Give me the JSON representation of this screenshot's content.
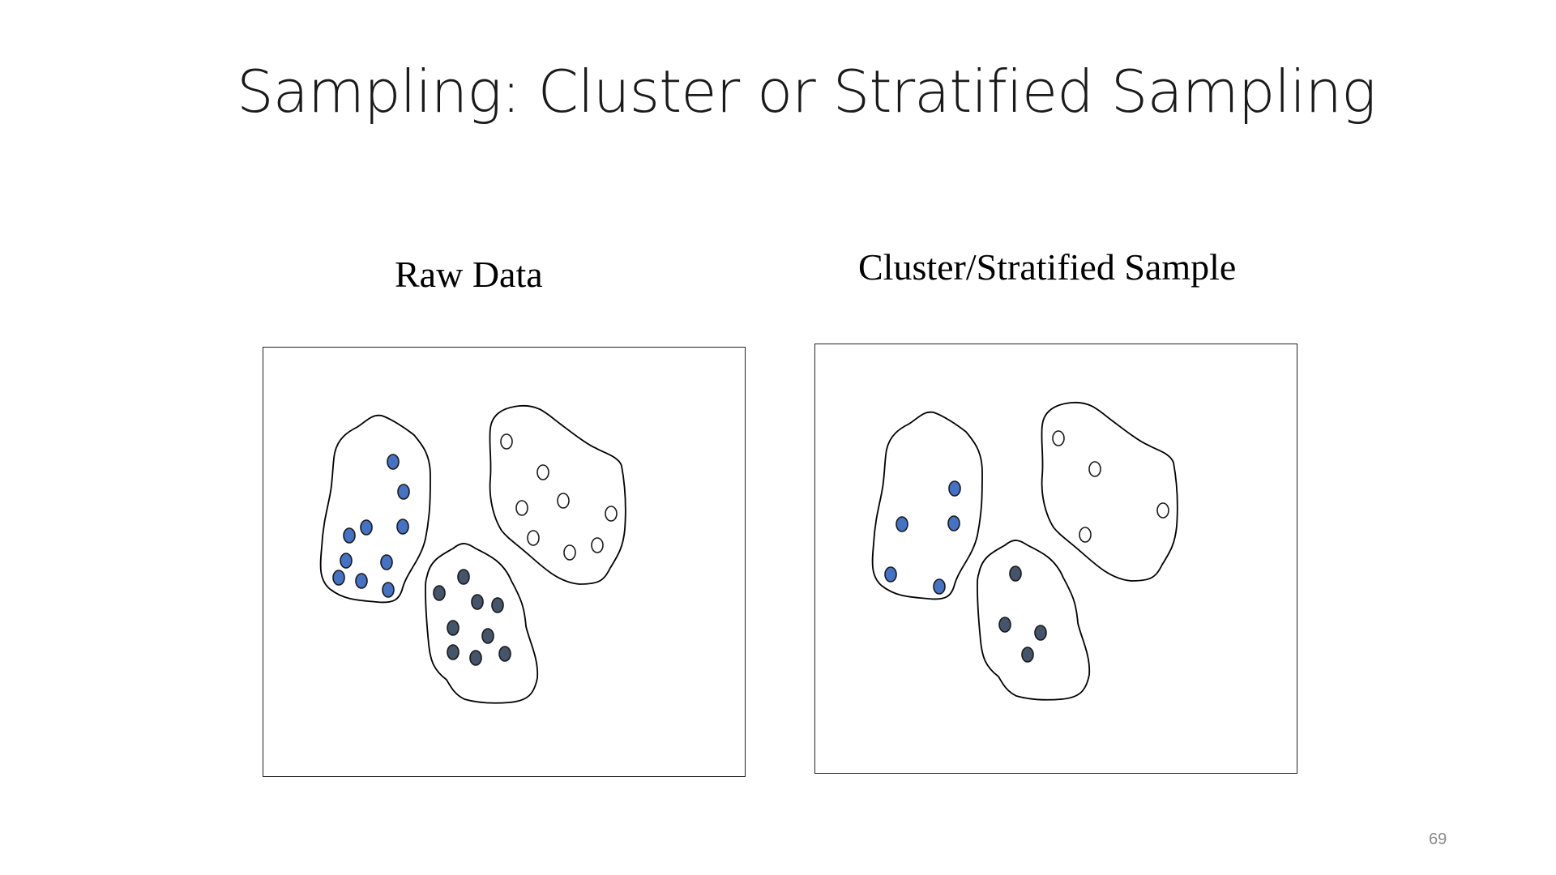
{
  "slide": {
    "title": "Sampling: Cluster or Stratified Sampling",
    "page_number": "69"
  },
  "panels": [
    {
      "label": "Raw Data",
      "clusters": [
        {
          "name": "blue",
          "fill": "#4472C4",
          "count": 11
        },
        {
          "name": "white",
          "fill": "#FFFFFF",
          "count": 9
        },
        {
          "name": "dark",
          "fill": "#44546A",
          "count": 9
        }
      ]
    },
    {
      "label": "Cluster/Stratified Sample",
      "clusters": [
        {
          "name": "blue",
          "fill": "#4472C4",
          "count": 5
        },
        {
          "name": "white",
          "fill": "#FFFFFF",
          "count": 4
        },
        {
          "name": "dark",
          "fill": "#44546A",
          "count": 4
        }
      ]
    }
  ],
  "colors": {
    "blue_points": "#4472C4",
    "white_points": "#FFFFFF",
    "dark_points": "#44546A",
    "outline": "#000000"
  }
}
